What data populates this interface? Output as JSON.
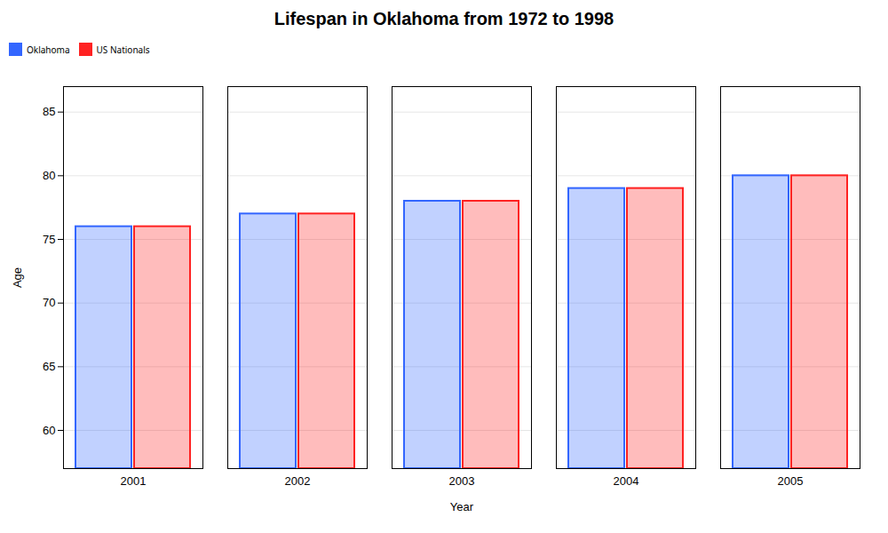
{
  "chart_data": {
    "type": "bar",
    "title": "Lifespan in Oklahoma from 1972 to 1998",
    "xlabel": "Year",
    "ylabel": "Age",
    "categories": [
      "2001",
      "2002",
      "2003",
      "2004",
      "2005"
    ],
    "series": [
      {
        "name": "Oklahoma",
        "color": "#3366ff",
        "values": [
          76,
          77,
          78,
          79,
          80
        ]
      },
      {
        "name": "US Nationals",
        "color": "#ff2222",
        "values": [
          76,
          77,
          78,
          79,
          80
        ]
      }
    ],
    "ylim": [
      57,
      87
    ],
    "yticks": [
      60,
      65,
      70,
      75,
      80,
      85
    ],
    "grid": true,
    "legend": "top"
  }
}
